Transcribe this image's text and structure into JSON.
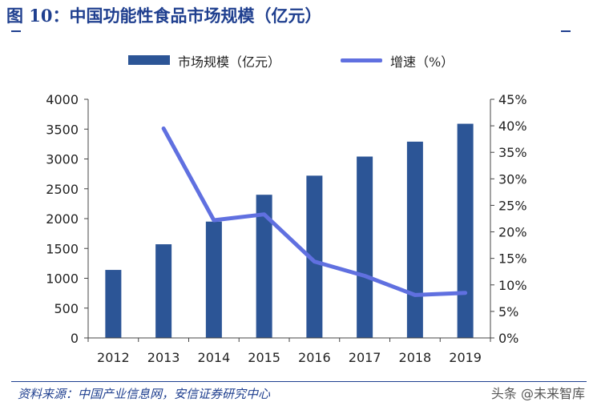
{
  "header": {
    "title": "图 10：中国功能性食品市场规模（亿元）"
  },
  "legend": {
    "bar_label": "市场规模（亿元）",
    "line_label": "增速（%）"
  },
  "footer": {
    "source": "资料来源：中国产业信息网，安信证券研究中心",
    "watermark": "头条 @未来智库"
  },
  "chart_data": {
    "type": "bar",
    "categories": [
      "2012",
      "2013",
      "2014",
      "2015",
      "2016",
      "2017",
      "2018",
      "2019"
    ],
    "series": [
      {
        "name": "市场规模（亿元）",
        "type": "bar",
        "axis": "left",
        "values": [
          1140,
          1570,
          1950,
          2400,
          2720,
          3040,
          3290,
          3590
        ]
      },
      {
        "name": "增速（%）",
        "type": "line",
        "axis": "right",
        "values": [
          null,
          39.5,
          22.2,
          23.3,
          14.4,
          11.7,
          8.1,
          8.5
        ]
      }
    ],
    "y_left": {
      "min": 0,
      "max": 4000,
      "ticks": [
        "0",
        "500",
        "1000",
        "1500",
        "2000",
        "2500",
        "3000",
        "3500",
        "4000"
      ]
    },
    "y_right": {
      "min": 0,
      "max": 45,
      "ticks": [
        "0%",
        "5%",
        "10%",
        "15%",
        "20%",
        "25%",
        "30%",
        "35%",
        "40%",
        "45%"
      ]
    },
    "colors": {
      "bar": "#2c5596",
      "line": "#6070e0",
      "axis": "#444444"
    },
    "legend_position": "top",
    "grid": false
  }
}
